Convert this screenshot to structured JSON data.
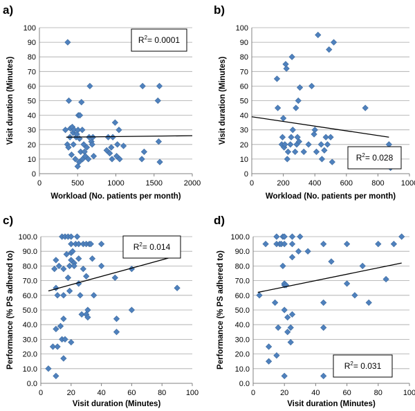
{
  "colors": {
    "marker": "#4f81bd",
    "marker_edge": "#3d6a9e",
    "grid": "#a6a6a6",
    "axis": "#808080",
    "trend": "#000000"
  },
  "chart_data": [
    {
      "panel": "a)",
      "type": "scatter",
      "xlabel": "Workload (No. patients per month)",
      "ylabel": "Visit duration (Minutes)",
      "xlim": [
        0,
        2000
      ],
      "ylim": [
        0,
        100
      ],
      "xticks": [
        "0",
        "500",
        "1000",
        "1500",
        "2000"
      ],
      "yticks": [
        "0",
        "10",
        "20",
        "30",
        "40",
        "50",
        "60",
        "70",
        "80",
        "90",
        "100"
      ],
      "xtick_values": [
        0,
        500,
        1000,
        1500,
        2000
      ],
      "ytick_values": [
        0,
        10,
        20,
        30,
        40,
        50,
        60,
        70,
        80,
        90,
        100
      ],
      "r2": {
        "base": "R",
        "sup": "2",
        "value": "= 0.0001",
        "position": "top-right"
      },
      "trendline": [
        [
          350,
          25
        ],
        [
          2000,
          26
        ]
      ],
      "points": [
        [
          370,
          90
        ],
        [
          340,
          30
        ],
        [
          365,
          20
        ],
        [
          380,
          18
        ],
        [
          385,
          50
        ],
        [
          400,
          25
        ],
        [
          405,
          31
        ],
        [
          420,
          13
        ],
        [
          430,
          32
        ],
        [
          440,
          28
        ],
        [
          445,
          20
        ],
        [
          455,
          30
        ],
        [
          470,
          10
        ],
        [
          480,
          25
        ],
        [
          490,
          27
        ],
        [
          500,
          5
        ],
        [
          505,
          30
        ],
        [
          510,
          40
        ],
        [
          520,
          8
        ],
        [
          525,
          24
        ],
        [
          530,
          40
        ],
        [
          540,
          15
        ],
        [
          550,
          49
        ],
        [
          560,
          30
        ],
        [
          565,
          10
        ],
        [
          580,
          20
        ],
        [
          590,
          15
        ],
        [
          600,
          12
        ],
        [
          620,
          18
        ],
        [
          640,
          10
        ],
        [
          650,
          25
        ],
        [
          660,
          60
        ],
        [
          680,
          22
        ],
        [
          690,
          20
        ],
        [
          700,
          25
        ],
        [
          710,
          12
        ],
        [
          880,
          16
        ],
        [
          900,
          25
        ],
        [
          920,
          14
        ],
        [
          940,
          18
        ],
        [
          950,
          10
        ],
        [
          960,
          25
        ],
        [
          990,
          35
        ],
        [
          1010,
          12
        ],
        [
          1020,
          20
        ],
        [
          1040,
          30
        ],
        [
          1050,
          10
        ],
        [
          1100,
          19
        ],
        [
          1340,
          10
        ],
        [
          1350,
          60
        ],
        [
          1370,
          15
        ],
        [
          1550,
          50
        ],
        [
          1560,
          22
        ],
        [
          1570,
          60
        ],
        [
          1575,
          8
        ]
      ]
    },
    {
      "panel": "b)",
      "type": "scatter",
      "xlabel": "Workload (No. patients per month)",
      "ylabel": "Visit duration (Minutes)",
      "xlim": [
        0,
        1000
      ],
      "ylim": [
        0,
        100
      ],
      "xticks": [
        "0",
        "200",
        "400",
        "600",
        "800",
        "1000"
      ],
      "yticks": [
        "0",
        "10",
        "20",
        "30",
        "40",
        "50",
        "60",
        "70",
        "80",
        "90",
        "100"
      ],
      "xtick_values": [
        0,
        200,
        400,
        600,
        800,
        1000
      ],
      "ytick_values": [
        0,
        10,
        20,
        30,
        40,
        50,
        60,
        70,
        80,
        90,
        100
      ],
      "r2": {
        "base": "R",
        "sup": "2",
        "value": "= 0.028",
        "position": "bottom-right"
      },
      "trendline": [
        [
          0,
          39
        ],
        [
          870,
          25
        ]
      ],
      "points": [
        [
          160,
          65
        ],
        [
          165,
          45
        ],
        [
          190,
          20
        ],
        [
          195,
          25
        ],
        [
          200,
          38
        ],
        [
          205,
          18
        ],
        [
          210,
          20
        ],
        [
          215,
          75
        ],
        [
          220,
          72
        ],
        [
          225,
          10
        ],
        [
          230,
          15
        ],
        [
          245,
          20
        ],
        [
          250,
          25
        ],
        [
          255,
          80
        ],
        [
          260,
          30
        ],
        [
          275,
          15
        ],
        [
          280,
          45
        ],
        [
          285,
          20
        ],
        [
          290,
          25
        ],
        [
          295,
          50
        ],
        [
          300,
          22
        ],
        [
          305,
          59
        ],
        [
          330,
          15
        ],
        [
          360,
          20
        ],
        [
          380,
          60
        ],
        [
          395,
          27
        ],
        [
          400,
          30
        ],
        [
          410,
          15
        ],
        [
          420,
          95
        ],
        [
          440,
          20
        ],
        [
          445,
          10
        ],
        [
          460,
          16
        ],
        [
          470,
          25
        ],
        [
          480,
          20
        ],
        [
          490,
          85
        ],
        [
          500,
          25
        ],
        [
          510,
          8
        ],
        [
          520,
          90
        ],
        [
          720,
          45
        ],
        [
          870,
          20
        ],
        [
          875,
          15
        ],
        [
          880,
          4
        ]
      ]
    },
    {
      "panel": "c)",
      "type": "scatter",
      "xlabel": "Visit duration (Minutes)",
      "ylabel": "Performance (% PS adhered to)",
      "xlim": [
        0,
        100
      ],
      "ylim": [
        0,
        100
      ],
      "xticks": [
        "0",
        "20",
        "40",
        "60",
        "80",
        "100"
      ],
      "yticks": [
        "0.0",
        "10.0",
        "20.0",
        "30.0",
        "40.0",
        "50.0",
        "60.0",
        "70.0",
        "80.0",
        "90.0",
        "100.0"
      ],
      "xtick_values": [
        0,
        20,
        40,
        60,
        80,
        100
      ],
      "ytick_values": [
        0,
        10,
        20,
        30,
        40,
        50,
        60,
        70,
        80,
        90,
        100
      ],
      "r2": {
        "base": "R",
        "sup": "2",
        "value": "= 0.014",
        "position": "top-right"
      },
      "trendline": [
        [
          5,
          63
        ],
        [
          90,
          87
        ]
      ],
      "points": [
        [
          5,
          10
        ],
        [
          8,
          25
        ],
        [
          9,
          78
        ],
        [
          10,
          65
        ],
        [
          10,
          5
        ],
        [
          10,
          37
        ],
        [
          10,
          84
        ],
        [
          11,
          25
        ],
        [
          11,
          60
        ],
        [
          12,
          80
        ],
        [
          13,
          39
        ],
        [
          14,
          100
        ],
        [
          14,
          30
        ],
        [
          15,
          60
        ],
        [
          15,
          17
        ],
        [
          15,
          44
        ],
        [
          15,
          78
        ],
        [
          16,
          100
        ],
        [
          16,
          30
        ],
        [
          17,
          88
        ],
        [
          18,
          100
        ],
        [
          18,
          72
        ],
        [
          19,
          63
        ],
        [
          19,
          80
        ],
        [
          20,
          100
        ],
        [
          20,
          84
        ],
        [
          20,
          28
        ],
        [
          20,
          95
        ],
        [
          20,
          89
        ],
        [
          21,
          90
        ],
        [
          22,
          82
        ],
        [
          22,
          80
        ],
        [
          23,
          95
        ],
        [
          24,
          100
        ],
        [
          25,
          68
        ],
        [
          25,
          85
        ],
        [
          25,
          95
        ],
        [
          26,
          60
        ],
        [
          27,
          47
        ],
        [
          28,
          95
        ],
        [
          28,
          78
        ],
        [
          30,
          47
        ],
        [
          30,
          95
        ],
        [
          30,
          73
        ],
        [
          31,
          50
        ],
        [
          31,
          45
        ],
        [
          32,
          95
        ],
        [
          33,
          95
        ],
        [
          34,
          85
        ],
        [
          35,
          60
        ],
        [
          40,
          95
        ],
        [
          40,
          80
        ],
        [
          49,
          72
        ],
        [
          50,
          44
        ],
        [
          50,
          35
        ],
        [
          60,
          78
        ],
        [
          60,
          50
        ],
        [
          90,
          65
        ]
      ]
    },
    {
      "panel": "d)",
      "type": "scatter",
      "xlabel": "Visit duration (Minutes)",
      "ylabel": "Performance (% PS adhered to)",
      "xlim": [
        0,
        100
      ],
      "ylim": [
        0,
        100
      ],
      "xticks": [
        "0",
        "20",
        "40",
        "60",
        "80",
        "100"
      ],
      "yticks": [
        "0.0",
        "10.0",
        "20.0",
        "30.0",
        "40.0",
        "50.0",
        "60.0",
        "70.0",
        "80.0",
        "90.0",
        "100.0"
      ],
      "xtick_values": [
        0,
        20,
        40,
        60,
        80,
        100
      ],
      "ytick_values": [
        0,
        10,
        20,
        30,
        40,
        50,
        60,
        70,
        80,
        90,
        100
      ],
      "r2": {
        "base": "R",
        "sup": "2",
        "value": "= 0.031",
        "position": "bottom-right"
      },
      "trendline": [
        [
          3,
          62
        ],
        [
          95,
          82
        ]
      ],
      "points": [
        [
          4,
          60
        ],
        [
          8,
          95
        ],
        [
          10,
          25
        ],
        [
          10,
          15
        ],
        [
          14,
          55
        ],
        [
          15,
          95
        ],
        [
          15,
          19
        ],
        [
          15,
          100
        ],
        [
          16,
          38
        ],
        [
          17,
          95
        ],
        [
          18,
          95
        ],
        [
          19,
          100
        ],
        [
          19,
          80
        ],
        [
          20,
          67
        ],
        [
          20,
          68
        ],
        [
          20,
          5
        ],
        [
          20,
          50
        ],
        [
          20,
          95
        ],
        [
          20,
          100
        ],
        [
          21,
          67
        ],
        [
          22,
          45
        ],
        [
          22,
          35
        ],
        [
          24,
          38
        ],
        [
          24,
          28
        ],
        [
          25,
          100
        ],
        [
          25,
          86
        ],
        [
          25,
          95
        ],
        [
          25,
          47
        ],
        [
          29,
          90
        ],
        [
          30,
          100
        ],
        [
          35,
          90
        ],
        [
          45,
          95
        ],
        [
          45,
          55
        ],
        [
          45,
          38
        ],
        [
          45,
          5
        ],
        [
          50,
          83
        ],
        [
          60,
          95
        ],
        [
          60,
          68
        ],
        [
          65,
          60
        ],
        [
          70,
          80
        ],
        [
          74,
          55
        ],
        [
          80,
          95
        ],
        [
          85,
          71
        ],
        [
          90,
          95
        ],
        [
          95,
          100
        ]
      ]
    }
  ]
}
